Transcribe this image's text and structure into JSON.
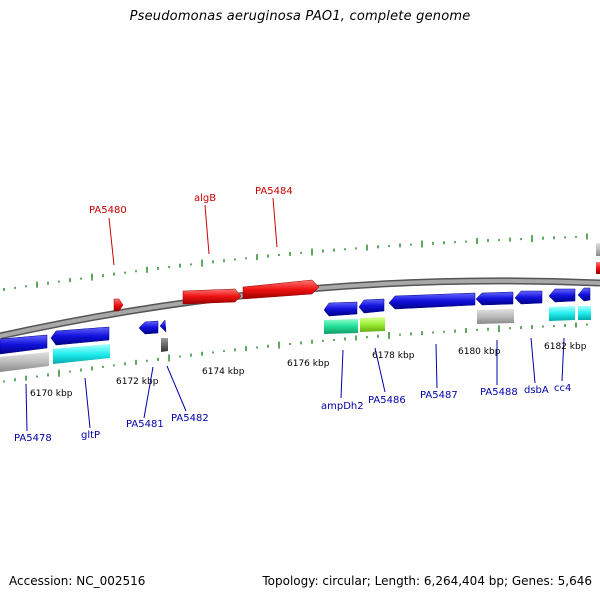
{
  "title": "Pseudomonas aeruginosa PAO1, complete genome",
  "footer": {
    "accession": "Accession: NC_002516",
    "summary": "Topology: circular; Length: 6,264,404 bp; Genes: 5,646"
  },
  "colors": {
    "backbone": "#8c8c8c",
    "forward_gene": "#ee1111",
    "reverse_gene": "#1111dd",
    "gc_ticks": "#2a8a2a",
    "forward_label": "#cc0000",
    "reverse_label": "#0000aa",
    "rna_cyan": "#22eeee",
    "rna_grey": "#bbbbbb",
    "rna_green": "#22dd99",
    "rna_lime": "#99ee33",
    "misc_dark": "#555555"
  },
  "scale_labels": [
    "6170 kbp",
    "6172 kbp",
    "6174 kbp",
    "6176 kbp",
    "6178 kbp",
    "6180 kbp",
    "6182 kbp"
  ],
  "forward_gene_labels": [
    "PA5480",
    "algB",
    "PA5484"
  ],
  "reverse_gene_labels": [
    "PA5478",
    "gltP",
    "PA5481",
    "PA5482",
    "ampDh2",
    "PA5486",
    "PA5487",
    "PA5488",
    "dsbA",
    "cc4"
  ]
}
